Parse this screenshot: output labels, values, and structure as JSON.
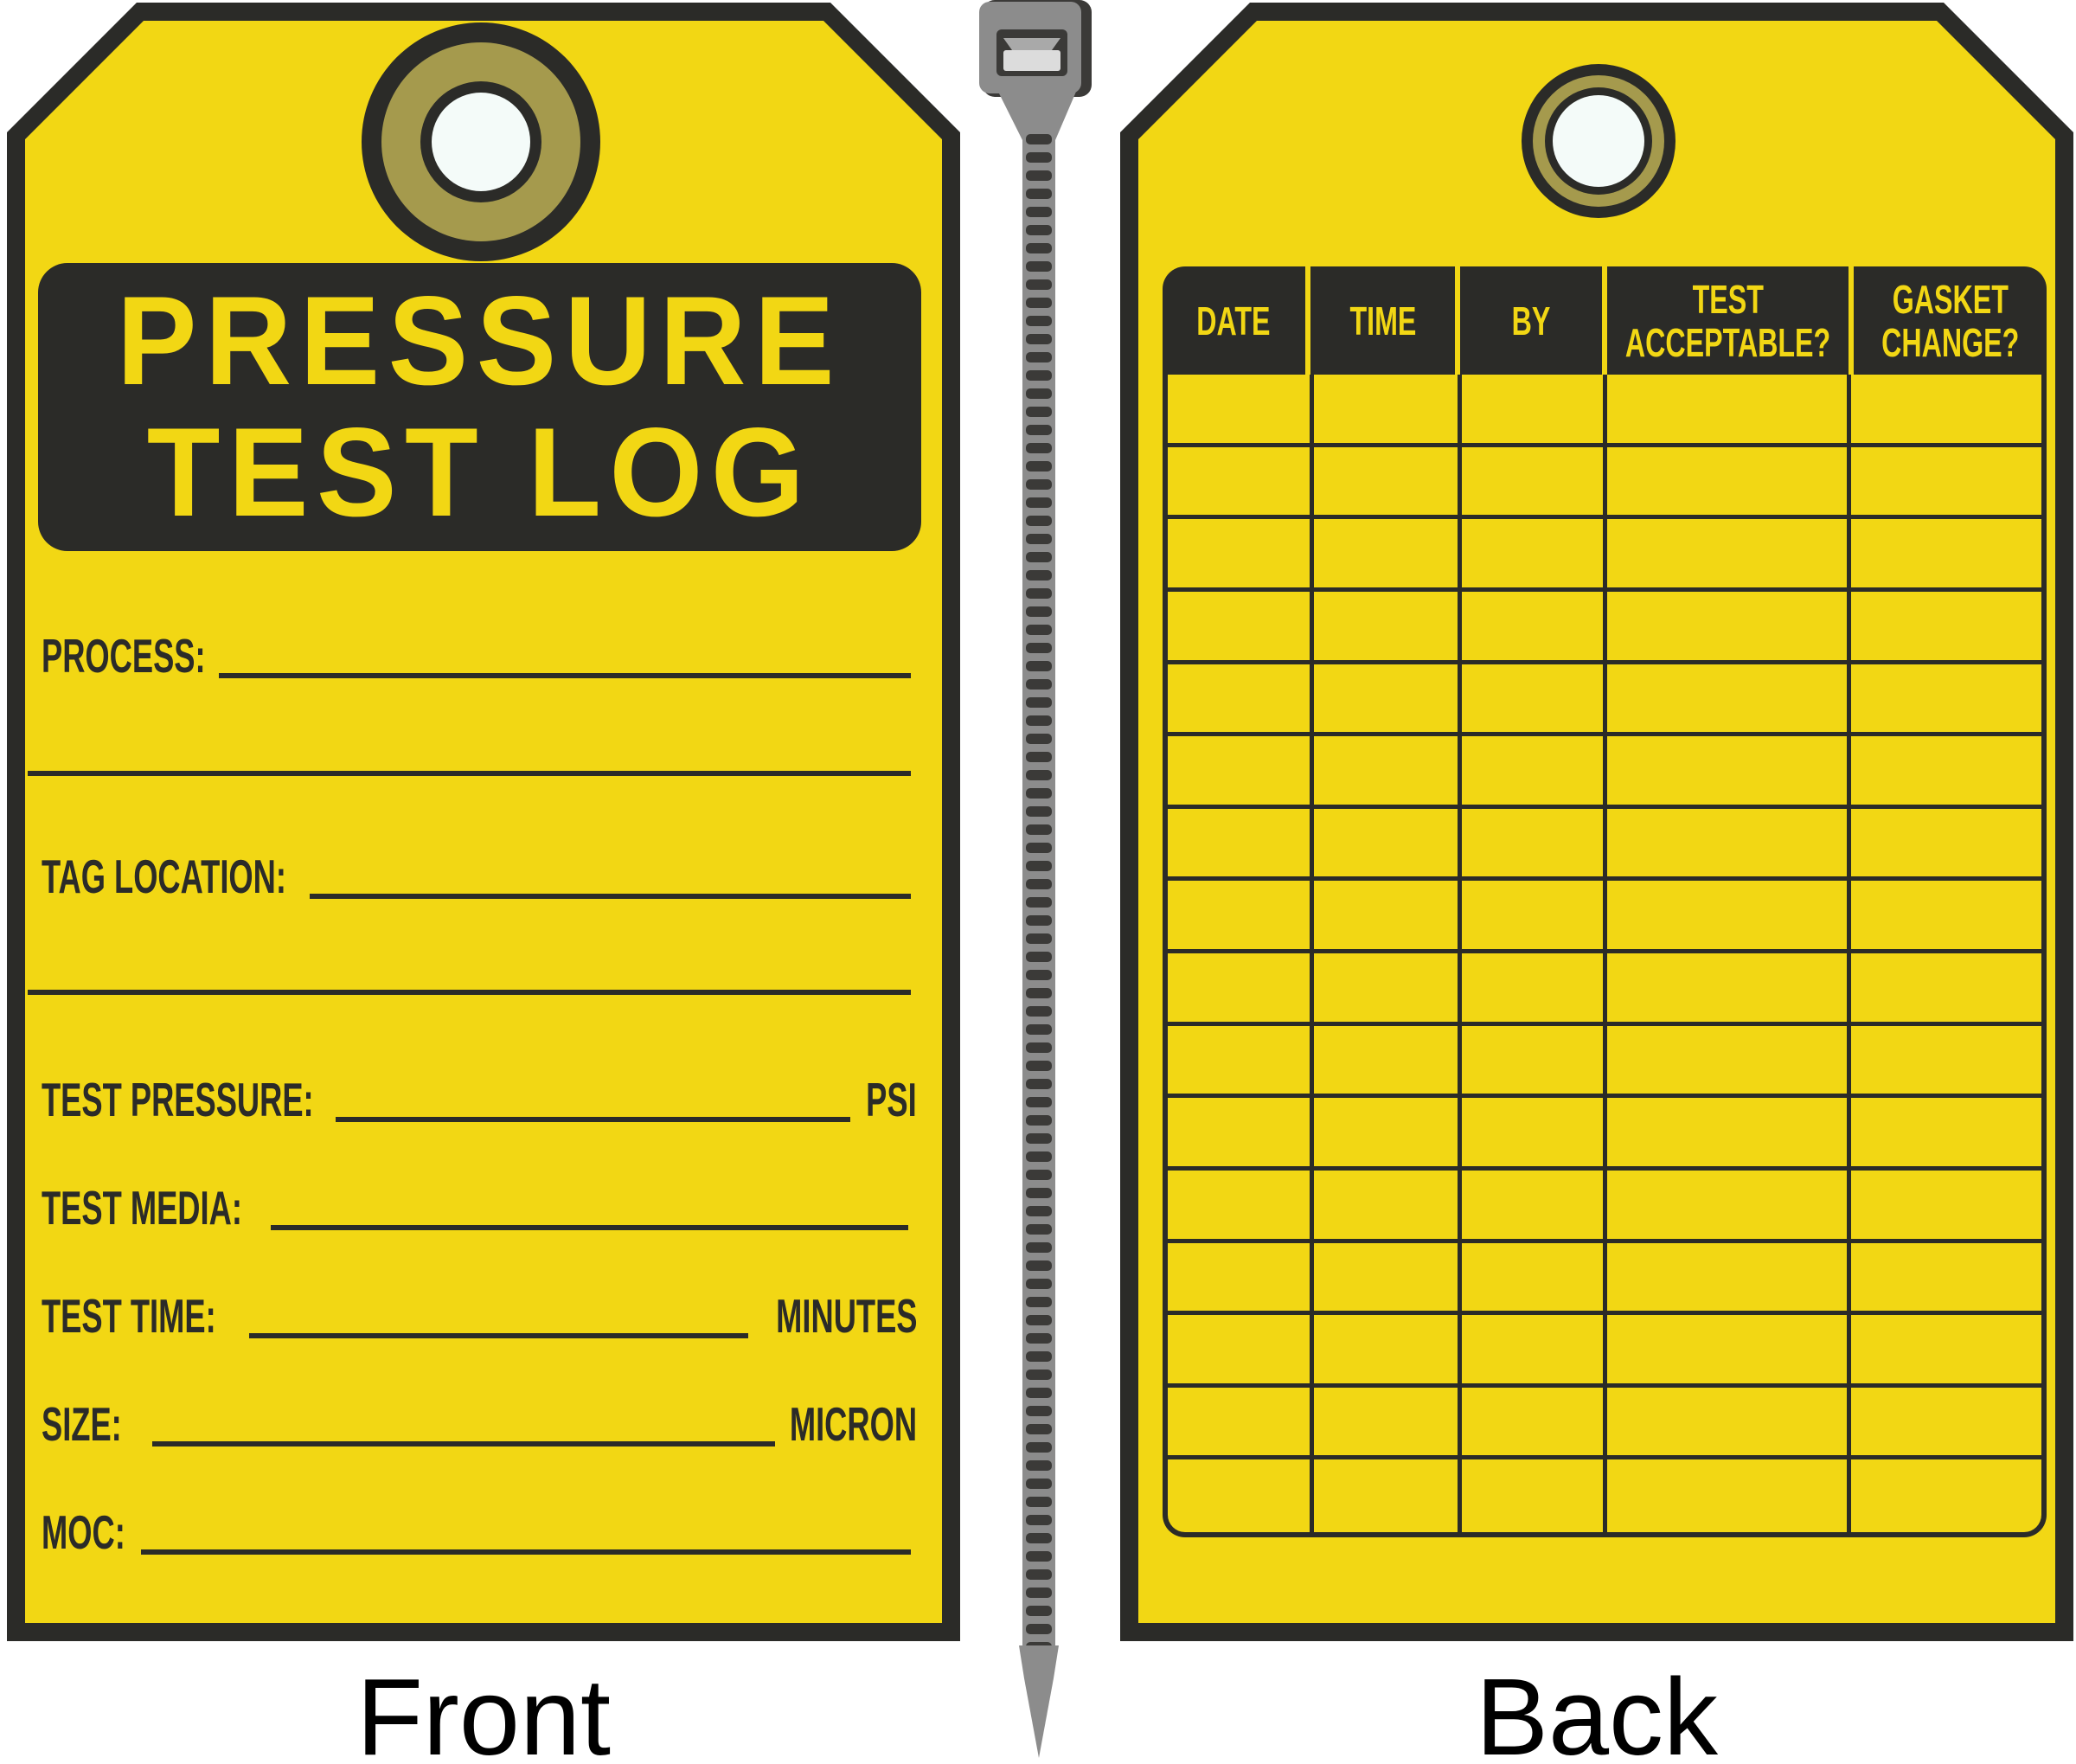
{
  "colors": {
    "yellow": "#F2D714",
    "dark": "#2B2B28",
    "olive": "#A59A4D",
    "hole": "#F4FBF9",
    "tie-gray": "#8C8C8C",
    "tie-dark": "#3B3A38",
    "tie-light": "#DCDCDC",
    "ink": "#000000",
    "white": "#FFFFFF"
  },
  "front_tag": {
    "caption": "Front",
    "title_line1": "PRESSURE",
    "title_line2": "TEST LOG",
    "fields": [
      {
        "label": "PROCESS:",
        "unit": ""
      },
      {
        "label": "TAG LOCATION:",
        "unit": ""
      },
      {
        "label": "TEST PRESSURE:",
        "unit": "PSI"
      },
      {
        "label": "TEST MEDIA:",
        "unit": ""
      },
      {
        "label": "TEST TIME:",
        "unit": "MINUTES"
      },
      {
        "label": "SIZE:",
        "unit": "MICRON"
      },
      {
        "label": "MOC:",
        "unit": ""
      }
    ]
  },
  "back_tag": {
    "caption": "Back",
    "table": {
      "columns": [
        {
          "line1": "DATE",
          "line2": ""
        },
        {
          "line1": "TIME",
          "line2": ""
        },
        {
          "line1": "BY",
          "line2": ""
        },
        {
          "line1": "TEST",
          "line2": "ACCEPTABLE?"
        },
        {
          "line1": "GASKET",
          "line2": "CHANGE?"
        }
      ],
      "row_count": 16
    }
  },
  "hardware": {
    "grommet_front": "brass-grommet-washer",
    "grommet_back": "brass-grommet-eyelet",
    "fastener": "cable-tie"
  }
}
